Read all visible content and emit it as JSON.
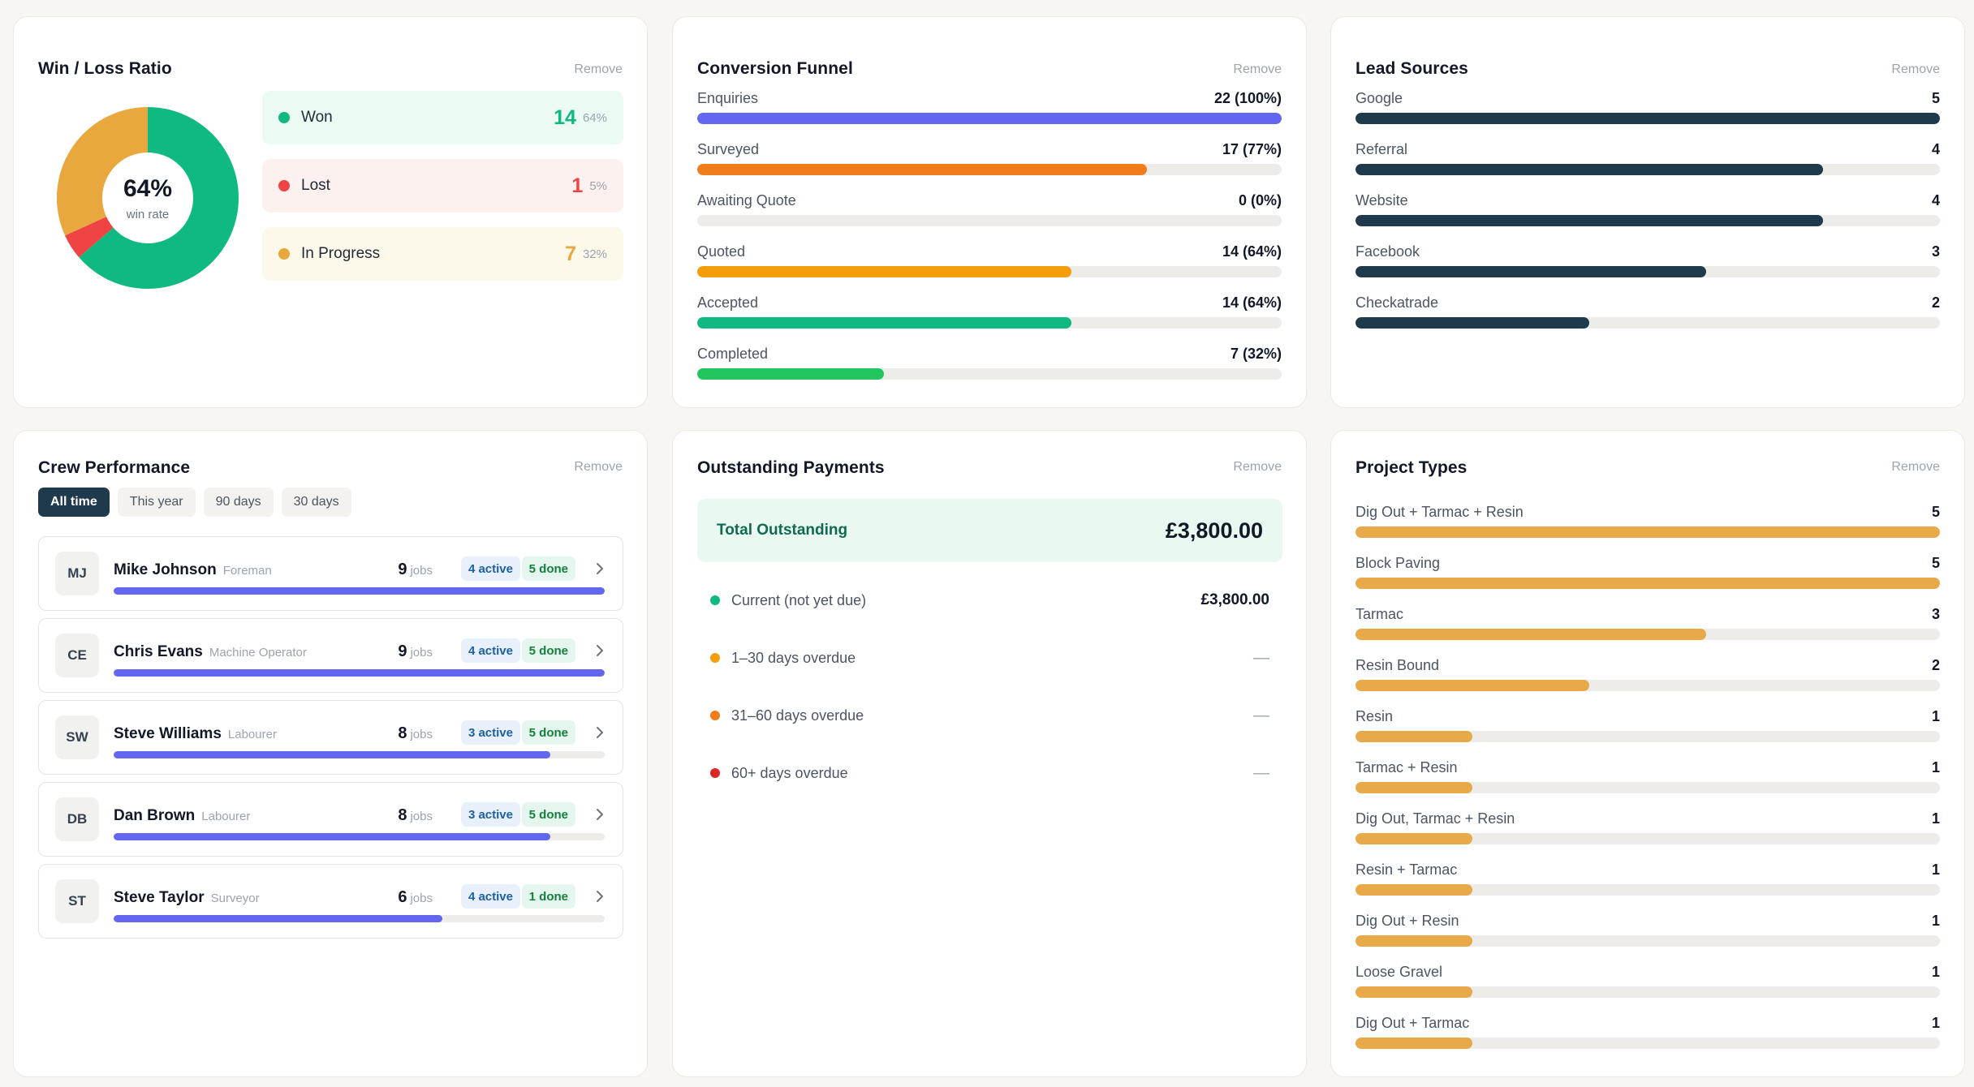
{
  "winloss": {
    "title": "Win / Loss Ratio",
    "remove": "Remove",
    "win_rate_pct": "64%",
    "win_rate_label": "win rate",
    "rows": [
      {
        "label": "Won",
        "count": "14",
        "pct": "64%",
        "color": "#10b981",
        "bg": "#ecfaf4",
        "count_color": "#10b981"
      },
      {
        "label": "Lost",
        "count": "1",
        "pct": "5%",
        "color": "#ef4444",
        "bg": "#fdf1f0",
        "count_color": "#ef4444"
      },
      {
        "label": "In Progress",
        "count": "7",
        "pct": "32%",
        "color": "#e8a83e",
        "bg": "#fdf9ea",
        "count_color": "#e8a83e"
      }
    ],
    "donut": [
      {
        "name": "Won",
        "value": 14,
        "color": "#10b981"
      },
      {
        "name": "Lost",
        "value": 1,
        "color": "#ef4444"
      },
      {
        "name": "In Progress",
        "value": 7,
        "color": "#e8a83e"
      }
    ]
  },
  "funnel": {
    "title": "Conversion Funnel",
    "remove": "Remove",
    "items": [
      {
        "label": "Enquiries",
        "value": "22 (100%)",
        "fraction": 1.0,
        "color": "#6366f1"
      },
      {
        "label": "Surveyed",
        "value": "17 (77%)",
        "fraction": 0.77,
        "color": "#f07d1a"
      },
      {
        "label": "Awaiting Quote",
        "value": "0 (0%)",
        "fraction": 0.0,
        "color": "#9ca3af"
      },
      {
        "label": "Quoted",
        "value": "14 (64%)",
        "fraction": 0.64,
        "color": "#f59e0b"
      },
      {
        "label": "Accepted",
        "value": "14 (64%)",
        "fraction": 0.64,
        "color": "#10b981"
      },
      {
        "label": "Completed",
        "value": "7 (32%)",
        "fraction": 0.32,
        "color": "#22c55e"
      }
    ]
  },
  "leads": {
    "title": "Lead Sources",
    "remove": "Remove",
    "items": [
      {
        "label": "Google",
        "value": "5",
        "fraction": 1.0
      },
      {
        "label": "Referral",
        "value": "4",
        "fraction": 0.8
      },
      {
        "label": "Website",
        "value": "4",
        "fraction": 0.8
      },
      {
        "label": "Facebook",
        "value": "3",
        "fraction": 0.6
      },
      {
        "label": "Checkatrade",
        "value": "2",
        "fraction": 0.4
      }
    ],
    "color": "#1e3a4c"
  },
  "crew": {
    "title": "Crew Performance",
    "remove": "Remove",
    "filters": [
      "All time",
      "This year",
      "90 days",
      "30 days"
    ],
    "active_filter": 0,
    "jobs_label": "jobs",
    "members": [
      {
        "initials": "MJ",
        "name": "Mike Johnson",
        "role": "Foreman",
        "jobs": "9",
        "active": "4 active",
        "done": "5 done",
        "fraction": 1.0
      },
      {
        "initials": "CE",
        "name": "Chris Evans",
        "role": "Machine Operator",
        "jobs": "9",
        "active": "4 active",
        "done": "5 done",
        "fraction": 1.0
      },
      {
        "initials": "SW",
        "name": "Steve Williams",
        "role": "Labourer",
        "jobs": "8",
        "active": "3 active",
        "done": "5 done",
        "fraction": 0.89
      },
      {
        "initials": "DB",
        "name": "Dan Brown",
        "role": "Labourer",
        "jobs": "8",
        "active": "3 active",
        "done": "5 done",
        "fraction": 0.89
      },
      {
        "initials": "ST",
        "name": "Steve Taylor",
        "role": "Surveyor",
        "jobs": "6",
        "active": "4 active",
        "done": "1 done",
        "fraction": 0.67
      }
    ]
  },
  "payments": {
    "title": "Outstanding Payments",
    "remove": "Remove",
    "total_label": "Total Outstanding",
    "total_value": "£3,800.00",
    "rows": [
      {
        "label": "Current (not yet due)",
        "value": "£3,800.00",
        "color": "#10b981"
      },
      {
        "label": "1–30 days overdue",
        "value": "—",
        "color": "#f59e0b"
      },
      {
        "label": "31–60 days overdue",
        "value": "—",
        "color": "#f07d1a"
      },
      {
        "label": "60+ days overdue",
        "value": "—",
        "color": "#dc2626"
      }
    ]
  },
  "types": {
    "title": "Project Types",
    "remove": "Remove",
    "color": "#e8aa48",
    "items": [
      {
        "label": "Dig Out + Tarmac + Resin",
        "value": "5",
        "fraction": 1.0
      },
      {
        "label": "Block Paving",
        "value": "5",
        "fraction": 1.0
      },
      {
        "label": "Tarmac",
        "value": "3",
        "fraction": 0.6
      },
      {
        "label": "Resin Bound",
        "value": "2",
        "fraction": 0.4
      },
      {
        "label": "Resin",
        "value": "1",
        "fraction": 0.2
      },
      {
        "label": "Tarmac + Resin",
        "value": "1",
        "fraction": 0.2
      },
      {
        "label": "Dig Out, Tarmac + Resin",
        "value": "1",
        "fraction": 0.2
      },
      {
        "label": "Resin + Tarmac",
        "value": "1",
        "fraction": 0.2
      },
      {
        "label": "Dig Out + Resin",
        "value": "1",
        "fraction": 0.2
      },
      {
        "label": "Loose Gravel",
        "value": "1",
        "fraction": 0.2
      },
      {
        "label": "Dig Out + Tarmac",
        "value": "1",
        "fraction": 0.2
      }
    ]
  }
}
